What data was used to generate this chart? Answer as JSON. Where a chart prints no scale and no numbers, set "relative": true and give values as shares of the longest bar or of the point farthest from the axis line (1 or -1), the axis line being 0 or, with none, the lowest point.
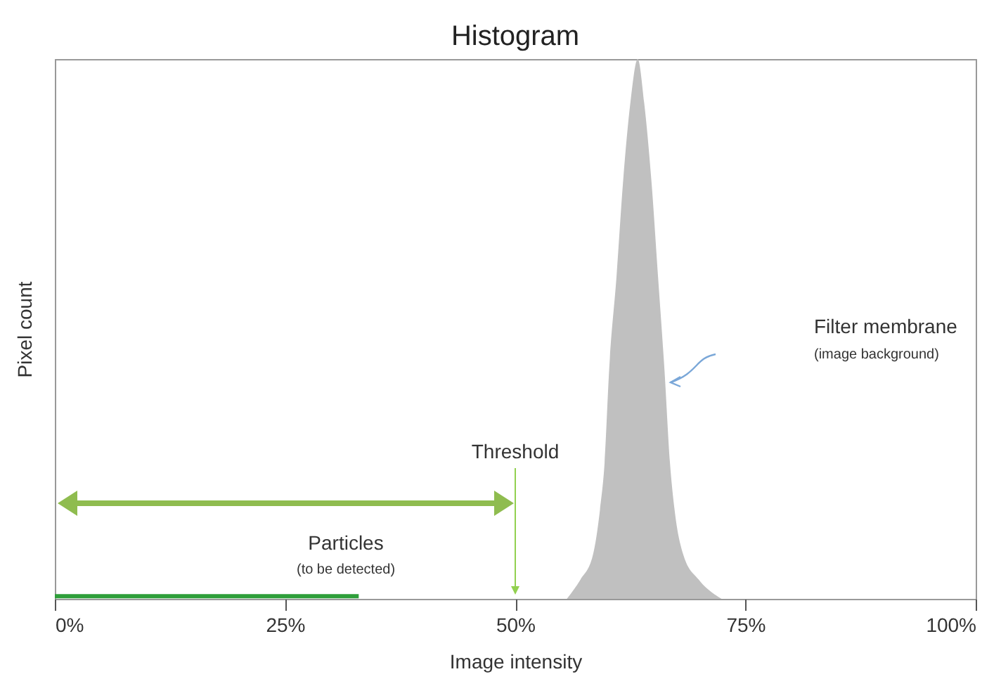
{
  "chart_data": {
    "type": "area",
    "title": "Histogram",
    "xlabel": "Image intensity",
    "ylabel": "Pixel count",
    "relative": true,
    "xlim": [
      0,
      100
    ],
    "xticks": [
      {
        "value": 0,
        "label": "0%"
      },
      {
        "value": 25,
        "label": "25%"
      },
      {
        "value": 50,
        "label": "50%"
      },
      {
        "value": 75,
        "label": "75%"
      },
      {
        "value": 100,
        "label": "100%"
      }
    ],
    "series": [
      {
        "color": "#c0c0c0",
        "x": [
          55.6,
          57.1,
          58.4,
          59.2,
          59.7,
          60.2,
          61.0,
          61.7,
          62.5,
          63.3,
          64.0,
          64.8,
          65.5,
          66.2,
          66.8,
          67.3,
          68.3,
          69.9,
          72.4
        ],
        "values": [
          0,
          0.036,
          0.079,
          0.165,
          0.252,
          0.425,
          0.598,
          0.771,
          0.919,
          1,
          0.919,
          0.771,
          0.598,
          0.425,
          0.252,
          0.165,
          0.079,
          0.036,
          0
        ]
      },
      {
        "type": "line",
        "color": "#2e9e3a",
        "x": [
          0,
          33
        ],
        "values": [
          0.005,
          0.005
        ]
      }
    ],
    "ref_lines": [
      {
        "axis": "x",
        "value": 50,
        "label": "Threshold",
        "color": "#92d050"
      }
    ],
    "annotations": [
      "Filter membrane",
      "(image background)",
      "Particles",
      "(to be detected)"
    ]
  }
}
